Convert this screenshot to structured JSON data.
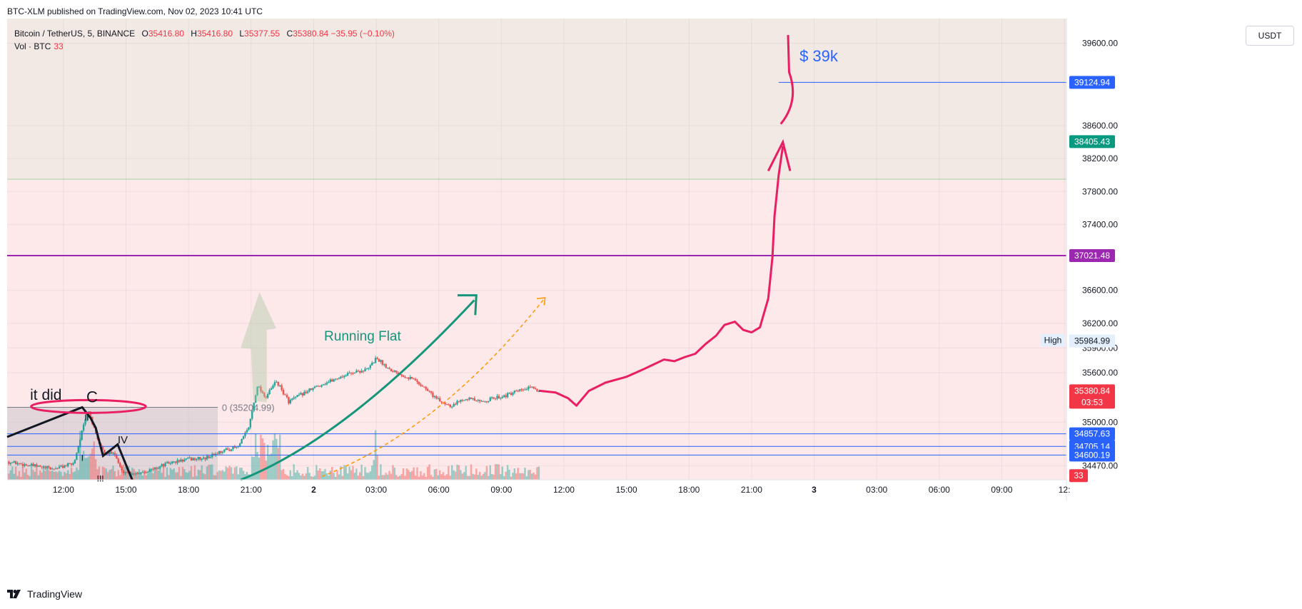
{
  "header": {
    "published": "BTC-XLM published on TradingView.com, Nov 02, 2023 10:41 UTC"
  },
  "legend": {
    "symbol": "Bitcoin / TetherUS, 5, BINANCE",
    "o_label": "O",
    "o_value": "35416.80",
    "h_label": "H",
    "h_value": "35416.80",
    "l_label": "L",
    "l_value": "35377.55",
    "c_label": "C",
    "c_value": "35380.84",
    "change": "−35.95 (−0.10%)",
    "vol_label": "Vol · BTC",
    "vol_value": "33"
  },
  "currency_button": "USDT",
  "brand": "TradingView",
  "colors": {
    "up": "#26a69a",
    "down": "#ef5350",
    "pink_zone": "#fde8ea",
    "beige_zone": "#f2e8e4",
    "blue_line": "#2962ff",
    "purple_line": "#9c27b0",
    "green_tag": "#089981",
    "red_tag": "#f23645",
    "drawing_pink": "#e91e63",
    "arrow_teal": "#15957a",
    "dashed_orange": "#ff9800"
  },
  "chart_data": {
    "type": "candlestick",
    "title": "Bitcoin / TetherUS, 5, BINANCE",
    "y_axis": {
      "range": [
        34300,
        39900
      ],
      "ticks": [
        {
          "value": 39600,
          "label": "39600.00"
        },
        {
          "value": 38600,
          "label": "38600.00"
        },
        {
          "value": 38200,
          "label": "38200.00"
        },
        {
          "value": 37800,
          "label": "37800.00"
        },
        {
          "value": 37400,
          "label": "37400.00"
        },
        {
          "value": 36600,
          "label": "36600.00"
        },
        {
          "value": 36200,
          "label": "36200.00"
        },
        {
          "value": 35900,
          "label": "35900.00"
        },
        {
          "value": 35600,
          "label": "35600.00"
        },
        {
          "value": 35000,
          "label": "35000.00"
        },
        {
          "value": 34470,
          "label": "34470.00"
        }
      ]
    },
    "x_axis": {
      "range_hours": [
        9.3,
        60.1
      ],
      "ticks": [
        {
          "hour": 12,
          "label": "12:00",
          "bold": false
        },
        {
          "hour": 15,
          "label": "15:00",
          "bold": false
        },
        {
          "hour": 18,
          "label": "18:00",
          "bold": false
        },
        {
          "hour": 21,
          "label": "21:00",
          "bold": false
        },
        {
          "hour": 24,
          "label": "2",
          "bold": true
        },
        {
          "hour": 27,
          "label": "03:00",
          "bold": false
        },
        {
          "hour": 30,
          "label": "06:00",
          "bold": false
        },
        {
          "hour": 33,
          "label": "09:00",
          "bold": false
        },
        {
          "hour": 36,
          "label": "12:00",
          "bold": false
        },
        {
          "hour": 39,
          "label": "15:00",
          "bold": false
        },
        {
          "hour": 42,
          "label": "18:00",
          "bold": false
        },
        {
          "hour": 45,
          "label": "21:00",
          "bold": false
        },
        {
          "hour": 48,
          "label": "3",
          "bold": true
        },
        {
          "hour": 51,
          "label": "03:00",
          "bold": false
        },
        {
          "hour": 54,
          "label": "06:00",
          "bold": false
        },
        {
          "hour": 57,
          "label": "09:00",
          "bold": false
        },
        {
          "hour": 60,
          "label": "12:",
          "bold": false
        }
      ]
    },
    "price_path": [
      [
        9.3,
        34520
      ],
      [
        10.5,
        34470
      ],
      [
        11.5,
        34430
      ],
      [
        12.5,
        34500
      ],
      [
        12.9,
        34900
      ],
      [
        13.2,
        35150
      ],
      [
        13.6,
        34800
      ],
      [
        14.0,
        34600
      ],
      [
        14.4,
        34650
      ],
      [
        14.8,
        34400
      ],
      [
        15.5,
        34380
      ],
      [
        16.2,
        34420
      ],
      [
        17.0,
        34500
      ],
      [
        18.0,
        34550
      ],
      [
        18.8,
        34560
      ],
      [
        19.6,
        34650
      ],
      [
        20.4,
        34700
      ],
      [
        20.9,
        34950
      ],
      [
        21.3,
        35450
      ],
      [
        21.7,
        35300
      ],
      [
        22.2,
        35500
      ],
      [
        22.8,
        35250
      ],
      [
        23.5,
        35350
      ],
      [
        24.3,
        35450
      ],
      [
        25.0,
        35520
      ],
      [
        25.8,
        35600
      ],
      [
        26.6,
        35640
      ],
      [
        27.0,
        35780
      ],
      [
        27.6,
        35650
      ],
      [
        28.2,
        35580
      ],
      [
        28.8,
        35520
      ],
      [
        29.4,
        35400
      ],
      [
        30.0,
        35260
      ],
      [
        30.6,
        35200
      ],
      [
        31.3,
        35300
      ],
      [
        32.0,
        35240
      ],
      [
        32.6,
        35290
      ],
      [
        33.3,
        35330
      ],
      [
        34.0,
        35390
      ],
      [
        34.5,
        35420
      ],
      [
        34.8,
        35381
      ]
    ],
    "price_lines": [
      {
        "value": 39124.94,
        "label": "39124.94",
        "color": "#2962ff",
        "x_from_hour": 46.3
      },
      {
        "value": 37021.48,
        "label": "37021.48",
        "color": "#9c27b0",
        "x_from_hour": 9.3
      },
      {
        "value": 34857.63,
        "label": "34857.63",
        "color": "#2962ff",
        "x_from_hour": 9.3
      },
      {
        "value": 34705.14,
        "label": "34705.14",
        "color": "#2962ff",
        "x_from_hour": 9.3
      },
      {
        "value": 34600.19,
        "label": "34600.19",
        "color": "#2962ff",
        "x_from_hour": 9.3
      }
    ],
    "axis_tags": [
      {
        "value": 38405.43,
        "label": "38405.43",
        "color": "#089981"
      },
      {
        "value": 35380.84,
        "label": "35380.84",
        "sub": "03:53",
        "color": "#f23645"
      },
      {
        "value": 34350,
        "label": "33",
        "color": "#f23645",
        "small": true
      }
    ],
    "high_marker": {
      "value": 35984.99,
      "label": "35984.99",
      "tag": "High"
    },
    "zones": [
      {
        "from": 37950,
        "to": 39900,
        "color": "#f2e8e4"
      },
      {
        "from": 34300,
        "to": 37950,
        "color": "#fde8ea"
      }
    ],
    "fib_box": {
      "x_from_hour": 9.3,
      "x_to_hour": 19.4,
      "from": 34300,
      "to": 35180,
      "label": "0 (35204.99)",
      "label_hour": 19.6
    },
    "annotations": [
      {
        "text": "$ 39k",
        "hour": 47.3,
        "value": 39380,
        "color": "#2962ff",
        "size": 22
      },
      {
        "text": "Running Flat",
        "hour": 24.5,
        "value": 35990,
        "color": "#15957a",
        "size": 19
      },
      {
        "text": "it did",
        "hour": 10.4,
        "value": 35270,
        "color": "#131722",
        "size": 21
      },
      {
        "text": "C",
        "hour": 13.1,
        "value": 35240,
        "color": "#131722",
        "size": 22
      },
      {
        "text": "IV",
        "hour": 14.6,
        "value": 34740,
        "color": "#131722",
        "size": 15
      },
      {
        "text": "II",
        "hour": 13.0,
        "value": 35020,
        "color": "#131722",
        "size": 12
      },
      {
        "text": "I",
        "hour": 12.85,
        "value": 34530,
        "color": "#131722",
        "size": 12
      },
      {
        "text": "III",
        "hour": 13.6,
        "value": 34280,
        "color": "#131722",
        "size": 12
      }
    ],
    "projection_path": [
      [
        34.8,
        35381
      ],
      [
        35.6,
        35360
      ],
      [
        36.2,
        35290
      ],
      [
        36.6,
        35200
      ],
      [
        37.2,
        35380
      ],
      [
        38.0,
        35480
      ],
      [
        39.0,
        35550
      ],
      [
        39.8,
        35640
      ],
      [
        40.3,
        35700
      ],
      [
        40.8,
        35760
      ],
      [
        41.3,
        35740
      ],
      [
        41.8,
        35790
      ],
      [
        42.3,
        35830
      ],
      [
        42.8,
        35950
      ],
      [
        43.3,
        36050
      ],
      [
        43.7,
        36180
      ],
      [
        44.2,
        36220
      ],
      [
        44.6,
        36120
      ],
      [
        45.0,
        36090
      ],
      [
        45.4,
        36150
      ],
      [
        45.8,
        36500
      ],
      [
        46.0,
        37000
      ],
      [
        46.1,
        37500
      ],
      [
        46.3,
        38000
      ],
      [
        46.5,
        38350
      ]
    ]
  }
}
